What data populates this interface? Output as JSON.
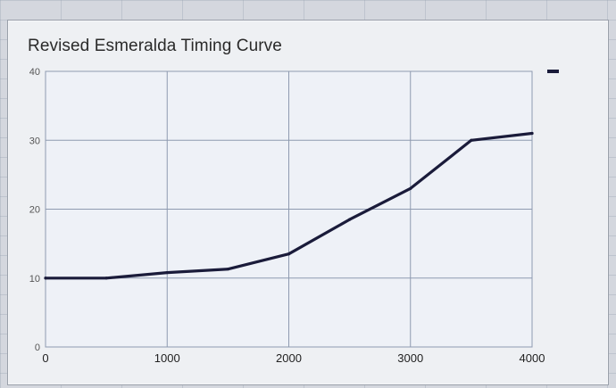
{
  "colors": {
    "line": "#1a1b3a",
    "grid": "#8e9ab0",
    "plot_bg": "#eef1f7"
  },
  "chart_data": {
    "type": "line",
    "title": "Revised Esmeralda Timing Curve",
    "xlabel": "",
    "ylabel": "",
    "xlim": [
      0,
      4000
    ],
    "ylim": [
      0,
      40
    ],
    "x_ticks": [
      0,
      1000,
      2000,
      3000,
      4000
    ],
    "y_ticks": [
      0,
      10,
      20,
      30,
      40
    ],
    "grid": true,
    "legend": "top-right",
    "series": [
      {
        "x": [
          0,
          500,
          1000,
          1500,
          2000,
          2500,
          3000,
          3500,
          4000
        ],
        "y": [
          10,
          10,
          10.8,
          11.3,
          13.5,
          18.5,
          23,
          30,
          31
        ]
      }
    ]
  }
}
